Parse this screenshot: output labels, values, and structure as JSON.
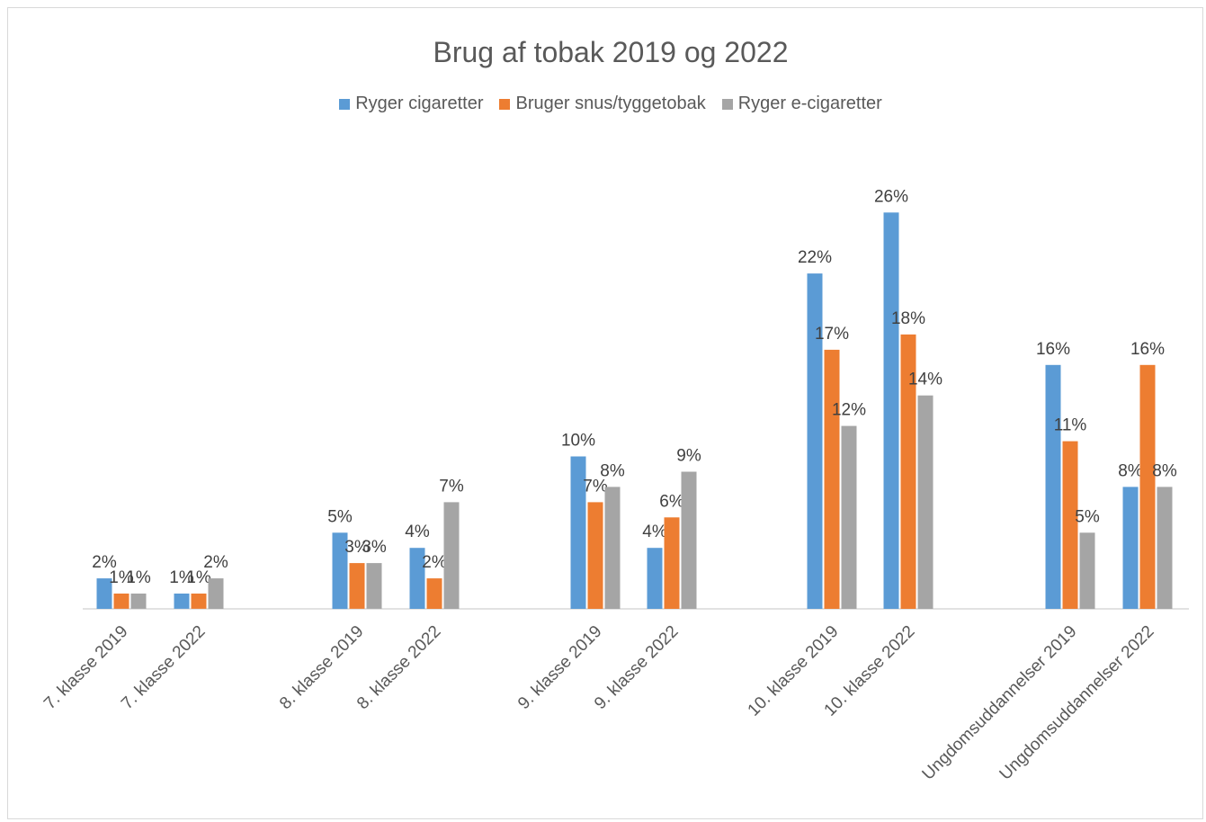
{
  "chart_data": {
    "type": "bar",
    "title": "Brug af tobak 2019 og 2022",
    "categories": [
      "7. klasse 2019",
      "7. klasse 2022",
      "8. klasse 2019",
      "8. klasse 2022",
      "9. klasse 2019",
      "9. klasse 2022",
      "10. klasse 2019",
      "10. klasse 2022",
      "Ungdomsuddannelser 2019",
      "Ungdomsuddannelser 2022"
    ],
    "series": [
      {
        "name": "Ryger cigaretter",
        "color": "#5b9bd5",
        "values": [
          2,
          1,
          5,
          4,
          10,
          4,
          22,
          26,
          16,
          8
        ],
        "labels": [
          "2%",
          "1%",
          "5%",
          "4%",
          "10%",
          "4%",
          "22%",
          "26%",
          "16%",
          "8%"
        ]
      },
      {
        "name": "Bruger snus/tyggetobak",
        "color": "#ed7d31",
        "values": [
          1,
          1,
          3,
          2,
          7,
          6,
          17,
          18,
          11,
          16
        ],
        "labels": [
          "1%",
          "1%",
          "3%",
          "2%",
          "7%",
          "6%",
          "17%",
          "18%",
          "11%",
          "16%"
        ]
      },
      {
        "name": "Ryger e-cigaretter",
        "color": "#a5a5a5",
        "values": [
          1,
          2,
          3,
          7,
          8,
          9,
          12,
          14,
          5,
          8
        ],
        "labels": [
          "1%",
          "2%",
          "3%",
          "7%",
          "8%",
          "9%",
          "12%",
          "14%",
          "5%",
          "8%"
        ]
      }
    ],
    "xlabel": "",
    "ylabel": "",
    "ylim": [
      0,
      30
    ],
    "grid": false,
    "legend_position": "top"
  }
}
